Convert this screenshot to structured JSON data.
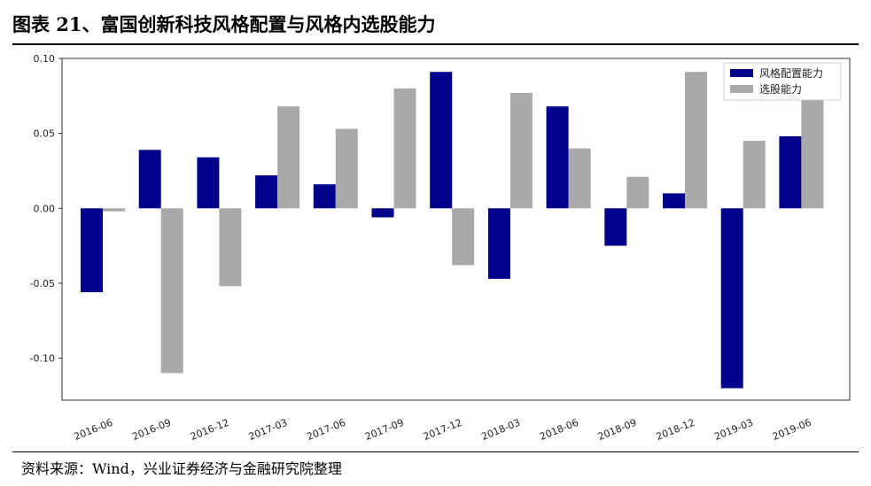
{
  "title": "图表 21、富国创新科技风格配置与风格内选股能力",
  "source": "资料来源：Wind，兴业证券经济与金融研究院整理",
  "chart_data": {
    "type": "bar",
    "categories": [
      "2016-06",
      "2016-09",
      "2016-12",
      "2017-03",
      "2017-06",
      "2017-09",
      "2017-12",
      "2018-03",
      "2018-06",
      "2018-09",
      "2018-12",
      "2019-03",
      "2019-06"
    ],
    "series": [
      {
        "name": "风格配置能力",
        "color": "#00008b",
        "values": [
          -0.056,
          0.039,
          0.034,
          0.022,
          0.016,
          -0.006,
          0.091,
          -0.047,
          0.068,
          -0.025,
          0.01,
          -0.12,
          0.048
        ]
      },
      {
        "name": "选股能力",
        "color": "#a9a9a9",
        "values": [
          -0.002,
          -0.11,
          -0.052,
          0.068,
          0.053,
          0.08,
          -0.038,
          0.077,
          0.04,
          0.021,
          0.091,
          0.045,
          0.073
        ]
      }
    ],
    "yticks": [
      0.1,
      0.05,
      0.0,
      -0.05,
      -0.1
    ],
    "ytick_labels": [
      "0.10",
      "0.05",
      "0.00",
      "-0.05",
      "-0.10"
    ],
    "ylim": [
      -0.128,
      0.1
    ],
    "grid": false,
    "legend": "top-right"
  }
}
